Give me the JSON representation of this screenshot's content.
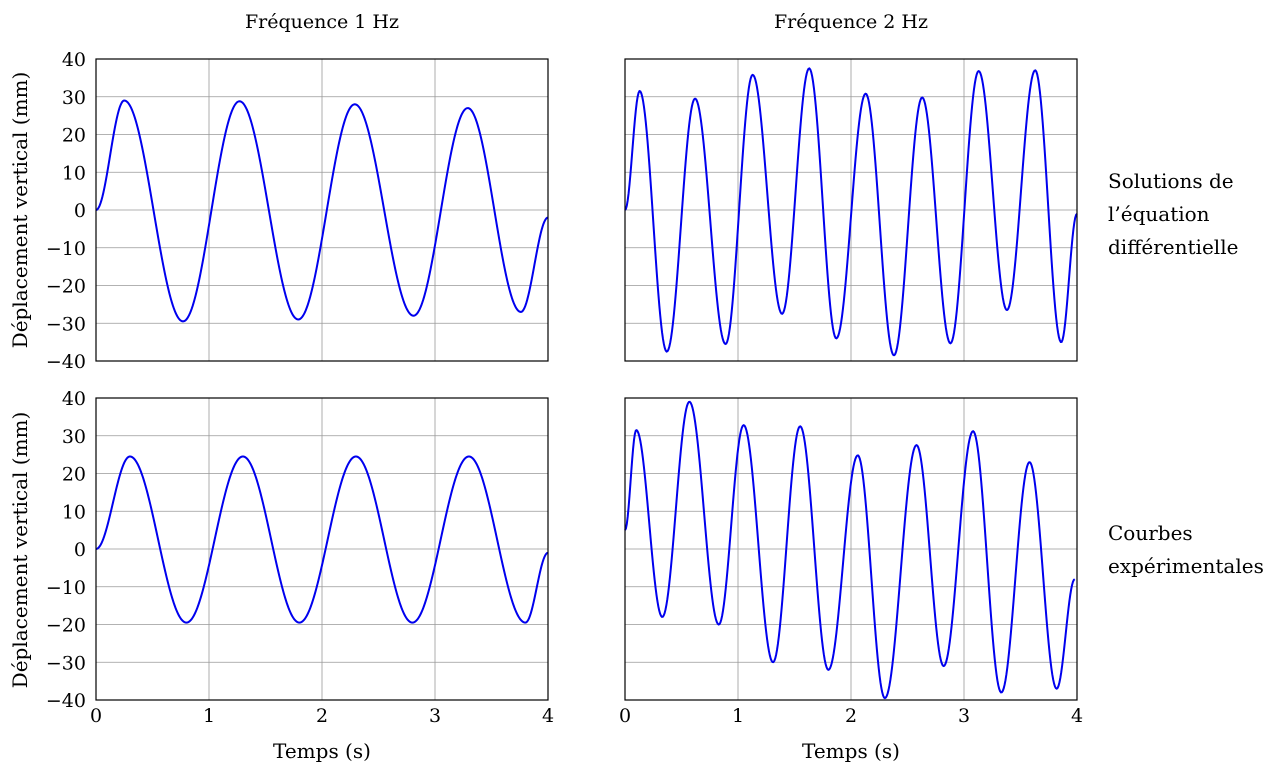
{
  "figure": {
    "column_titles": [
      "Fréquence 1 Hz",
      "Fréquence 2 Hz"
    ],
    "row_labels": [
      [
        "Solutions de",
        "l’équation",
        "différentielle"
      ],
      [
        "Courbes",
        "expérimentales"
      ]
    ],
    "ylabel": "Déplacement vertical (mm)",
    "xlabel": "Temps (s)",
    "y_ticks": [
      "40",
      "30",
      "20",
      "10",
      "0",
      "−10",
      "−20",
      "−30",
      "−40"
    ],
    "x_ticks": [
      "0",
      "1",
      "2",
      "3",
      "4"
    ]
  },
  "colors": {
    "curve": "#0000ee",
    "grid": "#999999",
    "frame": "#000000"
  },
  "chart_data": [
    {
      "type": "line",
      "row": "Solutions de l’équation différentielle",
      "column": "Fréquence 1 Hz",
      "xlim": [
        0,
        4
      ],
      "ylim": [
        -40,
        40
      ],
      "grid": true,
      "series": [
        {
          "x": [
            0,
            0.25,
            0.77,
            1.27,
            1.79,
            2.29,
            2.81,
            3.29,
            3.76,
            4.0
          ],
          "y": [
            0,
            29,
            -29.5,
            28.8,
            -29,
            28,
            -28,
            27,
            -27,
            -2
          ]
        }
      ]
    },
    {
      "type": "line",
      "row": "Solutions de l’équation différentielle",
      "column": "Fréquence 2 Hz",
      "xlim": [
        0,
        4
      ],
      "ylim": [
        -40,
        40
      ],
      "grid": true,
      "series": [
        {
          "x": [
            0,
            0.13,
            0.37,
            0.62,
            0.89,
            1.13,
            1.39,
            1.63,
            1.87,
            2.13,
            2.38,
            2.63,
            2.88,
            3.13,
            3.38,
            3.63,
            3.86,
            4.0
          ],
          "y": [
            0,
            31.5,
            -37.5,
            29.5,
            -35.5,
            35.8,
            -27.5,
            37.5,
            -34,
            30.8,
            -38.5,
            29.8,
            -35.3,
            36.8,
            -26.5,
            37,
            -35,
            -1
          ]
        }
      ]
    },
    {
      "type": "line",
      "row": "Courbes expérimentales",
      "column": "Fréquence 1 Hz",
      "xlim": [
        0,
        4
      ],
      "ylim": [
        -40,
        40
      ],
      "grid": true,
      "series": [
        {
          "x": [
            0,
            0.3,
            0.8,
            1.3,
            1.8,
            2.3,
            2.8,
            3.3,
            3.8,
            4.0
          ],
          "y": [
            0,
            24.5,
            -19.5,
            24.5,
            -19.5,
            24.5,
            -19.5,
            24.5,
            -19.5,
            -1
          ]
        }
      ]
    },
    {
      "type": "line",
      "row": "Courbes expérimentales",
      "column": "Fréquence 2 Hz",
      "xlim": [
        0,
        4
      ],
      "ylim": [
        -40,
        40
      ],
      "grid": true,
      "series": [
        {
          "x": [
            0,
            0.1,
            0.33,
            0.57,
            0.83,
            1.05,
            1.31,
            1.55,
            1.8,
            2.06,
            2.3,
            2.58,
            2.82,
            3.08,
            3.33,
            3.58,
            3.82,
            3.98
          ],
          "y": [
            5,
            31.5,
            -18,
            39,
            -20,
            32.8,
            -30,
            32.5,
            -32,
            24.8,
            -39.5,
            27.5,
            -31,
            31.2,
            -38,
            23,
            -37,
            -8
          ]
        }
      ]
    }
  ]
}
